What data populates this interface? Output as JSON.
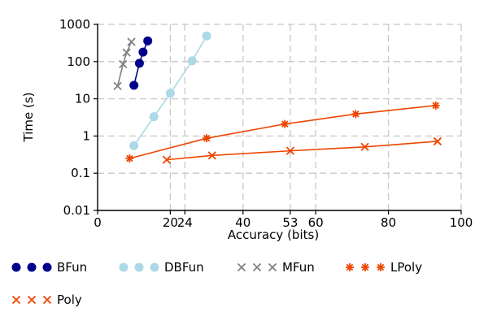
{
  "chart_data": {
    "type": "scatter",
    "xlabel": "Accuracy (bits)",
    "ylabel": "Time (s)",
    "xlim": [
      0,
      100
    ],
    "ylim": [
      0.01,
      1000
    ],
    "yscale": "log",
    "xticks": [
      0,
      20,
      24,
      40,
      53,
      60,
      80,
      100
    ],
    "xtick_labels": [
      "0",
      "20",
      "24",
      "40",
      "53",
      "60",
      "80",
      "100"
    ],
    "yticks": [
      0.01,
      0.1,
      1,
      10,
      100,
      1000
    ],
    "ytick_labels": [
      "0.01",
      "0.1",
      "1",
      "10",
      "100",
      "1000"
    ],
    "grid": true,
    "legend_position": "bottom",
    "series": [
      {
        "name": "BFun",
        "color": "#00008b",
        "marker": "circle",
        "line": true,
        "x": [
          10,
          11.5,
          12.5,
          13.8
        ],
        "y": [
          23,
          90,
          180,
          360
        ]
      },
      {
        "name": "DBFun",
        "color": "#add8e6",
        "marker": "circle",
        "line": true,
        "x": [
          10,
          15.5,
          20,
          26,
          30
        ],
        "y": [
          0.55,
          3.3,
          14,
          105,
          490
        ]
      },
      {
        "name": "MFun",
        "color": "#808080",
        "marker": "x",
        "line": true,
        "x": [
          5.5,
          7,
          8,
          9.3
        ],
        "y": [
          22,
          85,
          175,
          340
        ]
      },
      {
        "name": "LPoly",
        "color": "#ee4500",
        "marker": "asterisk",
        "line": true,
        "x": [
          8.8,
          30,
          51.5,
          71,
          93
        ],
        "y": [
          0.25,
          0.87,
          2.1,
          3.9,
          6.6
        ]
      },
      {
        "name": "Poly",
        "color": "#ee4500",
        "marker": "x",
        "line": true,
        "x": [
          19,
          31.5,
          53,
          73.5,
          93.5
        ],
        "y": [
          0.23,
          0.3,
          0.4,
          0.51,
          0.72
        ]
      }
    ]
  }
}
